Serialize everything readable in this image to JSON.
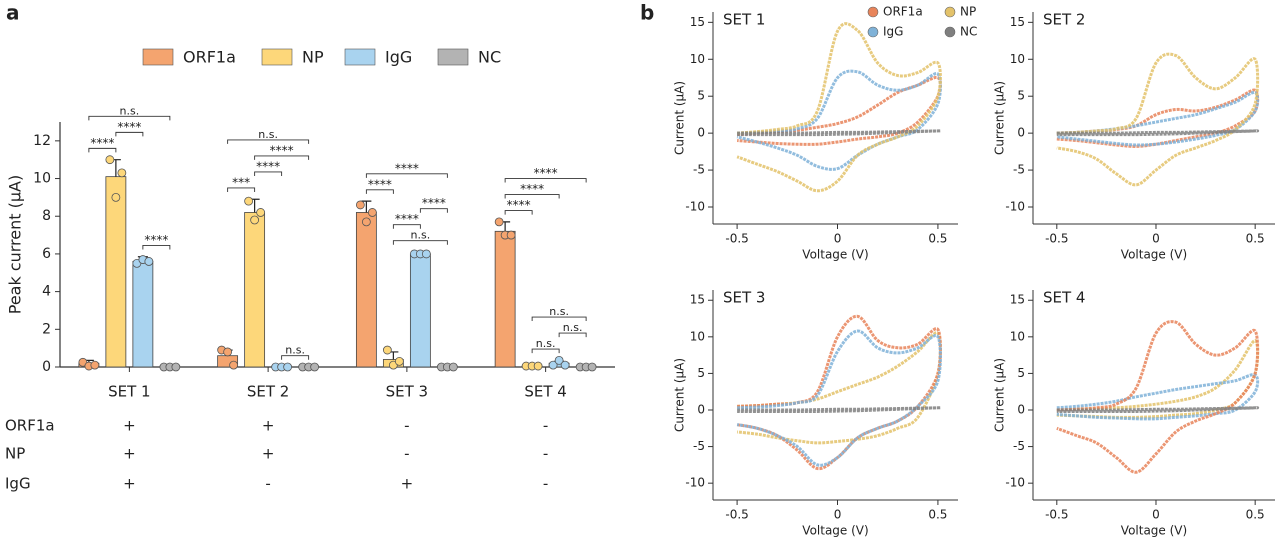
{
  "panel_labels": [
    "a",
    "b"
  ],
  "conditions": {
    "rows": [
      {
        "label": "ORF1a",
        "marks": [
          "+",
          "+",
          "-",
          "-"
        ]
      },
      {
        "label": "NP",
        "marks": [
          "+",
          "+",
          "-",
          "-"
        ]
      },
      {
        "label": "IgG",
        "marks": [
          "+",
          "-",
          "+",
          "-"
        ]
      }
    ]
  },
  "chart_data": [
    {
      "type": "bar",
      "ylabel": "Peak current (μA)",
      "categories": [
        "SET 1",
        "SET 2",
        "SET 3",
        "SET 4"
      ],
      "ylim": [
        0,
        13
      ],
      "yticks": [
        0,
        2,
        4,
        6,
        8,
        10,
        12
      ],
      "legend": "top",
      "series": [
        {
          "name": "ORF1a",
          "color": "#f4a46f",
          "values": [
            0.2,
            0.6,
            8.2,
            7.2
          ],
          "errors": [
            0.15,
            0.3,
            0.6,
            0.5
          ],
          "points": [
            [
              0.25,
              0.05,
              0.1
            ],
            [
              0.9,
              0.8,
              0.1
            ],
            [
              8.6,
              7.7,
              8.2
            ],
            [
              7.7,
              7.0,
              7.0
            ]
          ]
        },
        {
          "name": "NP",
          "color": "#fdd77a",
          "values": [
            10.1,
            8.2,
            0.4,
            0.05
          ],
          "errors": [
            0.9,
            0.7,
            0.4,
            0.05
          ],
          "points": [
            [
              11.0,
              9.0,
              10.3
            ],
            [
              8.8,
              7.8,
              8.2
            ],
            [
              0.9,
              0.1,
              0.3
            ],
            [
              0.05,
              0.05,
              0.05
            ]
          ]
        },
        {
          "name": "IgG",
          "color": "#a9d3ef",
          "values": [
            5.6,
            0,
            6.0,
            0.2
          ],
          "errors": [
            0.25,
            0,
            0.1,
            0.1
          ],
          "points": [
            [
              5.5,
              5.7,
              5.6
            ],
            [
              0,
              0,
              0
            ],
            [
              6.0,
              6.0,
              6.0
            ],
            [
              0.1,
              0.35,
              0.1
            ]
          ]
        },
        {
          "name": "NC",
          "color": "#b3b3b3",
          "values": [
            0,
            0,
            0,
            0
          ],
          "errors": [
            0,
            0,
            0,
            0
          ],
          "points": [
            [
              0,
              0,
              0
            ],
            [
              0,
              0,
              0
            ],
            [
              0,
              0,
              0
            ],
            [
              0,
              0,
              0
            ]
          ]
        }
      ],
      "significance": [
        {
          "category": 0,
          "from": 0,
          "to": 1,
          "label": "****"
        },
        {
          "category": 0,
          "from": 1,
          "to": 2,
          "label": "****"
        },
        {
          "category": 0,
          "from": 0,
          "to": 3,
          "label": "n.s."
        },
        {
          "category": 0,
          "from": 2,
          "to": 3,
          "label": "****"
        },
        {
          "category": 1,
          "from": 0,
          "to": 1,
          "label": "***"
        },
        {
          "category": 1,
          "from": 1,
          "to": 2,
          "label": "****"
        },
        {
          "category": 1,
          "from": 1,
          "to": 3,
          "label": "****"
        },
        {
          "category": 1,
          "from": 0,
          "to": 3,
          "label": "n.s."
        },
        {
          "category": 1,
          "from": 2,
          "to": 3,
          "label": "n.s."
        },
        {
          "category": 2,
          "from": 0,
          "to": 1,
          "label": "****"
        },
        {
          "category": 2,
          "from": 0,
          "to": 3,
          "label": "****"
        },
        {
          "category": 2,
          "from": 1,
          "to": 3,
          "label": "n.s."
        },
        {
          "category": 2,
          "from": 1,
          "to": 2,
          "label": "****"
        },
        {
          "category": 2,
          "from": 2,
          "to": 3,
          "label": "****"
        },
        {
          "category": 3,
          "from": 0,
          "to": 1,
          "label": "****"
        },
        {
          "category": 3,
          "from": 0,
          "to": 2,
          "label": "****"
        },
        {
          "category": 3,
          "from": 0,
          "to": 3,
          "label": "****"
        },
        {
          "category": 3,
          "from": 1,
          "to": 2,
          "label": "n.s."
        },
        {
          "category": 3,
          "from": 2,
          "to": 3,
          "label": "n.s."
        },
        {
          "category": 3,
          "from": 1,
          "to": 3,
          "label": "n.s."
        }
      ]
    },
    {
      "type": "line",
      "title": "SET 1",
      "xlabel": "Voltage (V)",
      "ylabel": "Current (μA)",
      "legend": "top right",
      "xlim": [
        -0.62,
        0.6
      ],
      "xticks": [
        -0.5,
        0,
        0.5
      ],
      "ylim": [
        -12.3,
        16.4
      ],
      "yticks": [
        -10,
        -5,
        0,
        5,
        10,
        15
      ],
      "x": [
        -0.5,
        -0.4,
        -0.3,
        -0.2,
        -0.1,
        0,
        0.1,
        0.2,
        0.3,
        0.4,
        0.5,
        0.5,
        0.4,
        0.3,
        0.2,
        0.1,
        0,
        -0.1,
        -0.2,
        -0.3,
        -0.4,
        -0.5
      ],
      "series": [
        {
          "name": "ORF1a",
          "color": "#e8845a",
          "values": [
            -0.2,
            0,
            0.2,
            0.4,
            0.8,
            1.3,
            2.2,
            3.8,
            5.5,
            6.5,
            7.5,
            5,
            1.5,
            0,
            -0.5,
            -0.8,
            -1.2,
            -1.5,
            -1.5,
            -1.4,
            -1.2,
            -1
          ]
        },
        {
          "name": "IgG",
          "color": "#7fb2d8",
          "values": [
            0,
            0.1,
            0.3,
            0.6,
            2,
            7.5,
            8.3,
            6.5,
            5.8,
            6.5,
            8,
            4,
            0.5,
            -0.5,
            -1.5,
            -3,
            -4.8,
            -4.5,
            -3,
            -2,
            -1.2,
            -0.5
          ]
        },
        {
          "name": "NP",
          "color": "#e3c26a",
          "values": [
            0,
            0.2,
            0.5,
            1,
            3,
            13.8,
            13.9,
            9.5,
            7.8,
            8.2,
            9.5,
            5,
            1,
            -0.5,
            -1.5,
            -3,
            -6.5,
            -7.8,
            -6.5,
            -5.2,
            -4.2,
            -3.2
          ]
        },
        {
          "name": "NC",
          "color": "#7f7f7f",
          "values": [
            0,
            0,
            0,
            0,
            0.05,
            0.1,
            0.1,
            0.15,
            0.2,
            0.25,
            0.3,
            0.3,
            0.2,
            0.1,
            0,
            -0.1,
            -0.15,
            -0.2,
            -0.2,
            -0.2,
            -0.2,
            -0.2
          ]
        }
      ]
    },
    {
      "type": "line",
      "title": "SET 2",
      "xlabel": "Voltage (V)",
      "ylabel": "Current (μA)",
      "xlim": [
        -0.62,
        0.6
      ],
      "xticks": [
        -0.5,
        0,
        0.5
      ],
      "ylim": [
        -12.3,
        16.4
      ],
      "yticks": [
        -10,
        -5,
        0,
        5,
        10,
        15
      ],
      "x": [
        -0.5,
        -0.4,
        -0.3,
        -0.2,
        -0.1,
        0,
        0.1,
        0.2,
        0.3,
        0.4,
        0.5,
        0.5,
        0.4,
        0.3,
        0.2,
        0.1,
        0,
        -0.1,
        -0.2,
        -0.3,
        -0.4,
        -0.5
      ],
      "series": [
        {
          "color": "#e8845a",
          "values": [
            0,
            0.1,
            0.3,
            0.5,
            1,
            2.5,
            3.2,
            3,
            3.5,
            4.5,
            5.8,
            3,
            1,
            0,
            -0.5,
            -1,
            -1.5,
            -1.8,
            -1.6,
            -1.3,
            -1,
            -0.8
          ]
        },
        {
          "color": "#7fb2d8",
          "values": [
            0,
            0.1,
            0.3,
            0.6,
            1,
            1.5,
            2,
            2.5,
            3.3,
            4.2,
            5.5,
            3,
            0.5,
            -0.3,
            -0.8,
            -1.2,
            -1.5,
            -1.6,
            -1.4,
            -1.1,
            -0.8,
            -0.5
          ]
        },
        {
          "color": "#e3c26a",
          "values": [
            0,
            0.1,
            0.3,
            0.6,
            2,
            9.5,
            10.5,
            7.5,
            6,
            7.5,
            10,
            4,
            0.5,
            -1,
            -2,
            -3,
            -5,
            -7,
            -5.5,
            -3.5,
            -2.5,
            -2
          ]
        },
        {
          "color": "#7f7f7f",
          "values": [
            0,
            0,
            0,
            0,
            0.05,
            0.1,
            0.1,
            0.15,
            0.2,
            0.25,
            0.3,
            0.3,
            0.2,
            0.1,
            0,
            -0.1,
            -0.15,
            -0.2,
            -0.2,
            -0.2,
            -0.2,
            -0.2
          ]
        }
      ]
    },
    {
      "type": "line",
      "title": "SET 3",
      "xlabel": "Voltage (V)",
      "ylabel": "Current (μA)",
      "xlim": [
        -0.62,
        0.6
      ],
      "xticks": [
        -0.5,
        0,
        0.5
      ],
      "ylim": [
        -12.3,
        16.4
      ],
      "yticks": [
        -10,
        -5,
        0,
        5,
        10,
        15
      ],
      "x": [
        -0.5,
        -0.4,
        -0.3,
        -0.2,
        -0.1,
        0,
        0.1,
        0.2,
        0.3,
        0.4,
        0.5,
        0.5,
        0.4,
        0.3,
        0.2,
        0.1,
        0,
        -0.1,
        -0.2,
        -0.3,
        -0.4,
        -0.5
      ],
      "series": [
        {
          "color": "#e3c26a",
          "values": [
            0.5,
            0.6,
            0.8,
            1,
            1.5,
            2.5,
            3.5,
            4.5,
            6,
            8,
            10.5,
            5,
            -1,
            -2.5,
            -3.5,
            -4,
            -4.3,
            -4.5,
            -4.2,
            -3.8,
            -3.3,
            -3
          ]
        },
        {
          "color": "#e8845a",
          "values": [
            0.5,
            0.6,
            0.8,
            1,
            2.5,
            10,
            12.8,
            9.5,
            8.5,
            9,
            11,
            5,
            0.5,
            -1.5,
            -2.5,
            -3.8,
            -6.5,
            -8,
            -5.5,
            -3.5,
            -2.5,
            -2
          ]
        },
        {
          "color": "#7fb2d8",
          "values": [
            0.3,
            0.4,
            0.6,
            1,
            2,
            8,
            10.8,
            8.5,
            7.8,
            8.5,
            10,
            4,
            0.5,
            -1.5,
            -2.5,
            -3.8,
            -6.5,
            -7.5,
            -5,
            -3.5,
            -2.5,
            -2
          ]
        },
        {
          "color": "#7f7f7f",
          "values": [
            0,
            0,
            0,
            0,
            0.05,
            0.1,
            0.1,
            0.15,
            0.2,
            0.25,
            0.3,
            0.3,
            0.2,
            0.1,
            0,
            -0.1,
            -0.15,
            -0.2,
            -0.2,
            -0.2,
            -0.2,
            -0.2
          ]
        }
      ]
    },
    {
      "type": "line",
      "title": "SET 4",
      "xlabel": "Voltage (V)",
      "ylabel": "Current (μA)",
      "xlim": [
        -0.62,
        0.6
      ],
      "xticks": [
        -0.5,
        0,
        0.5
      ],
      "ylim": [
        -12.3,
        16.4
      ],
      "yticks": [
        -10,
        -5,
        0,
        5,
        10,
        15
      ],
      "x": [
        -0.5,
        -0.4,
        -0.3,
        -0.2,
        -0.1,
        0,
        0.1,
        0.2,
        0.3,
        0.4,
        0.5,
        0.5,
        0.4,
        0.3,
        0.2,
        0.1,
        0,
        -0.1,
        -0.2,
        -0.3,
        -0.4,
        -0.5
      ],
      "series": [
        {
          "color": "#e3c26a",
          "values": [
            0,
            0.1,
            0.2,
            0.3,
            0.5,
            0.8,
            1.2,
            1.8,
            3,
            5.5,
            9.5,
            5,
            1,
            0,
            -0.5,
            -0.7,
            -0.9,
            -1,
            -1,
            -0.9,
            -0.8,
            -0.7
          ]
        },
        {
          "color": "#7fb2d8",
          "values": [
            0.3,
            0.5,
            0.8,
            1.2,
            1.8,
            2.3,
            2.8,
            3.2,
            3.6,
            4,
            4.8,
            2.5,
            0,
            -0.5,
            -0.8,
            -1,
            -1.2,
            -1.2,
            -1.1,
            -1,
            -0.8,
            -0.6
          ]
        },
        {
          "color": "#e8845a",
          "values": [
            0,
            0.1,
            0.3,
            0.8,
            3,
            10.5,
            12,
            9,
            7.5,
            8.5,
            10.8,
            5,
            1,
            -0.5,
            -1.5,
            -3,
            -6,
            -8.5,
            -6.5,
            -4.5,
            -3.5,
            -2.5
          ]
        },
        {
          "color": "#7f7f7f",
          "values": [
            0,
            0,
            0,
            0,
            0.05,
            0.1,
            0.1,
            0.15,
            0.2,
            0.25,
            0.3,
            0.3,
            0.2,
            0.1,
            0,
            -0.1,
            -0.15,
            -0.2,
            -0.2,
            -0.2,
            -0.2,
            -0.2
          ]
        }
      ]
    }
  ]
}
